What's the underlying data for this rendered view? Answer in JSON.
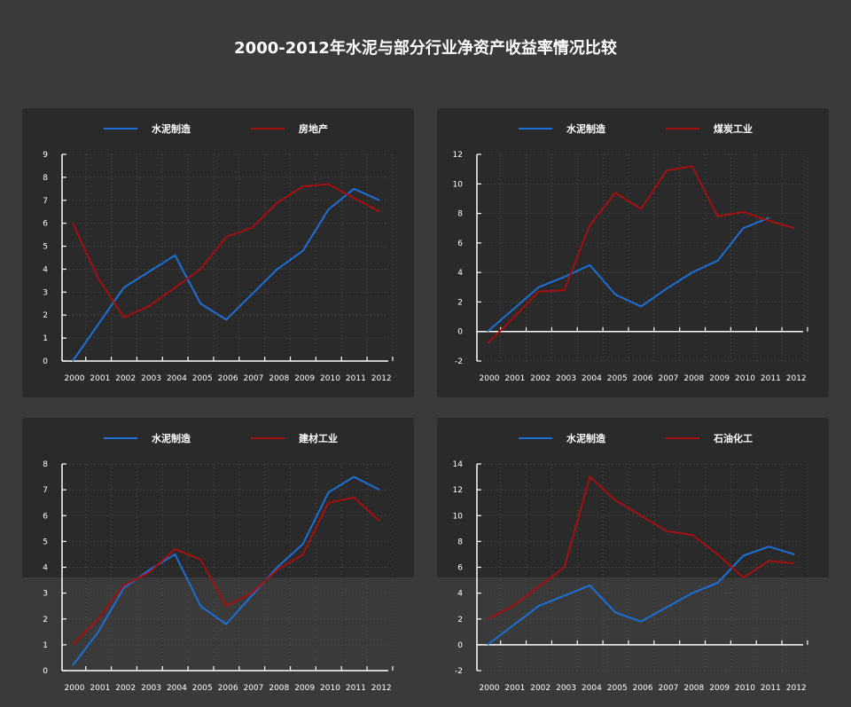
{
  "title": "2000-2012年水泥与部分行业净资产收益率情况比较",
  "colors": {
    "cement": "#1b6fd6",
    "other": "#a50f0f",
    "panel_bg": "#2a2a2a",
    "page_bg": "#3a3a3a"
  },
  "chart_data": [
    {
      "type": "line",
      "x": [
        "2000",
        "2001",
        "2002",
        "2003",
        "2004",
        "2005",
        "2006",
        "2007",
        "2008",
        "2009",
        "2010",
        "2011",
        "2012"
      ],
      "ylim": [
        0,
        9
      ],
      "yticks": [
        0,
        1,
        2,
        3,
        4,
        5,
        6,
        7,
        8,
        9
      ],
      "grid": true,
      "legend_position": "top",
      "series": [
        {
          "name": "水泥制造",
          "values": [
            0.0,
            1.6,
            3.2,
            3.9,
            4.6,
            2.5,
            1.8,
            2.9,
            4.0,
            4.8,
            6.6,
            7.5,
            7.0
          ]
        },
        {
          "name": "房地产",
          "values": [
            6.0,
            3.6,
            1.9,
            2.4,
            3.2,
            4.0,
            5.4,
            5.8,
            6.9,
            7.6,
            7.7,
            7.1,
            6.5
          ]
        }
      ]
    },
    {
      "type": "line",
      "x": [
        "2000",
        "2001",
        "2002",
        "2003",
        "2004",
        "2005",
        "2006",
        "2007",
        "2008",
        "2009",
        "2010",
        "2011",
        "2012"
      ],
      "ylim": [
        -2,
        12
      ],
      "yticks": [
        -2,
        0,
        2,
        4,
        6,
        8,
        10,
        12
      ],
      "grid": true,
      "legend_position": "top",
      "series": [
        {
          "name": "水泥制造",
          "values": [
            0.0,
            1.5,
            3.0,
            3.7,
            4.5,
            2.5,
            1.7,
            2.9,
            4.0,
            4.8,
            7.0,
            7.7,
            null
          ]
        },
        {
          "name": "煤炭工业",
          "values": [
            -0.8,
            0.9,
            2.7,
            2.8,
            7.2,
            9.4,
            8.3,
            10.9,
            11.2,
            7.8,
            8.1,
            7.5,
            7.0
          ]
        }
      ]
    },
    {
      "type": "line",
      "x": [
        "2000",
        "2001",
        "2002",
        "2003",
        "2004",
        "2005",
        "2006",
        "2007",
        "2008",
        "2009",
        "2010",
        "2011",
        "2012"
      ],
      "ylim": [
        0,
        8
      ],
      "yticks": [
        0,
        1,
        2,
        3,
        4,
        5,
        6,
        7,
        8
      ],
      "grid": true,
      "legend_position": "top",
      "series": [
        {
          "name": "水泥制造",
          "values": [
            0.2,
            1.5,
            3.2,
            3.9,
            4.5,
            2.5,
            1.8,
            2.9,
            4.0,
            4.9,
            6.9,
            7.5,
            7.0
          ]
        },
        {
          "name": "建材工业",
          "values": [
            1.0,
            2.0,
            3.3,
            3.8,
            4.7,
            4.3,
            2.5,
            3.0,
            3.9,
            4.5,
            6.5,
            6.7,
            5.8
          ]
        }
      ]
    },
    {
      "type": "line",
      "x": [
        "2000",
        "2001",
        "2002",
        "2003",
        "2004",
        "2005",
        "2006",
        "2007",
        "2008",
        "2009",
        "2010",
        "2011",
        "2012"
      ],
      "ylim": [
        -2,
        14
      ],
      "yticks": [
        -2,
        0,
        2,
        4,
        6,
        8,
        10,
        12,
        14
      ],
      "grid": true,
      "legend_position": "top",
      "series": [
        {
          "name": "水泥制造",
          "values": [
            0.0,
            1.5,
            3.0,
            3.8,
            4.6,
            2.5,
            1.8,
            2.9,
            4.0,
            4.8,
            6.9,
            7.6,
            7.0
          ]
        },
        {
          "name": "石油化工",
          "values": [
            2.0,
            3.0,
            4.5,
            6.0,
            13.0,
            11.2,
            10.0,
            8.8,
            8.5,
            7.0,
            5.2,
            6.5,
            6.3
          ]
        }
      ]
    }
  ]
}
